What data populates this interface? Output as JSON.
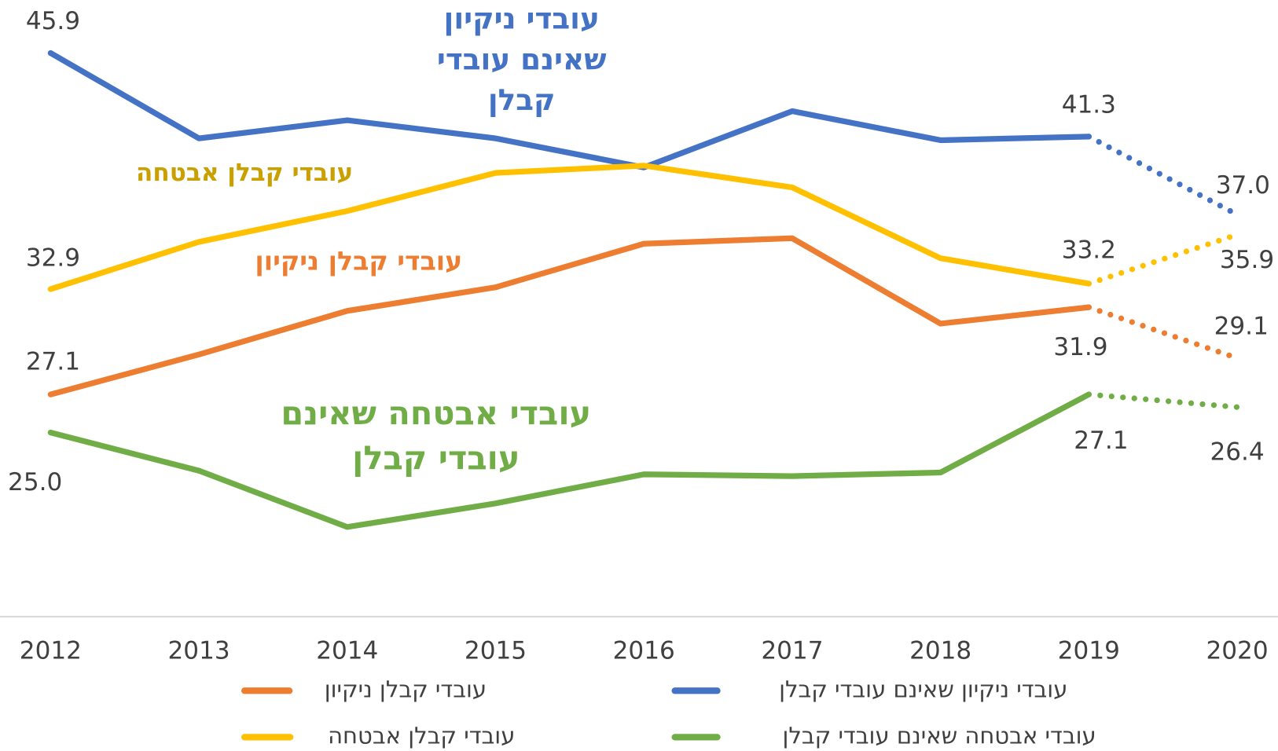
{
  "chart_data": {
    "type": "line",
    "categories": [
      "2012",
      "2013",
      "2014",
      "2015",
      "2016",
      "2017",
      "2018",
      "2019",
      "2020"
    ],
    "ylim": [
      15,
      49
    ],
    "series": [
      {
        "name": "עובדי ניקיון שאינם עובדי קבלן",
        "color": "#4472c4",
        "values": [
          45.9,
          41.2,
          42.2,
          41.2,
          39.6,
          42.7,
          41.1,
          41.3,
          37.0
        ],
        "value_labels": [
          "45.9",
          null,
          null,
          null,
          null,
          null,
          null,
          "41.3",
          "37.0"
        ]
      },
      {
        "name": "עובדי קבלן אבטחה",
        "color": "#ffc000",
        "values": [
          32.9,
          35.5,
          37.2,
          39.3,
          39.7,
          38.5,
          34.6,
          33.2,
          35.9
        ],
        "value_labels": [
          "32.9",
          null,
          null,
          null,
          null,
          null,
          null,
          "33.2",
          "35.9"
        ]
      },
      {
        "name": "עובדי קבלן ניקיון",
        "color": "#ed7d31",
        "values": [
          27.1,
          29.3,
          31.7,
          33.0,
          35.4,
          35.7,
          31.0,
          31.9,
          29.1
        ],
        "value_labels": [
          "27.1",
          null,
          null,
          null,
          null,
          null,
          null,
          "31.9",
          "29.1"
        ]
      },
      {
        "name": "עובדי אבטחה שאינם עובדי קבלן",
        "color": "#70ad47",
        "values": [
          25.0,
          22.9,
          19.8,
          21.1,
          22.7,
          22.6,
          22.8,
          27.1,
          26.4
        ],
        "value_labels": [
          "25.0",
          null,
          null,
          null,
          null,
          null,
          null,
          "27.1",
          "26.4"
        ]
      }
    ],
    "annotations": [
      {
        "lines": [
          "עובדי ניקיון",
          "שאינם עובדי",
          "קבלן"
        ]
      },
      {
        "lines": [
          "עובדי קבלן אבטחה"
        ]
      },
      {
        "lines": [
          "עובדי קבלן ניקיון"
        ]
      },
      {
        "lines": [
          "עובדי אבטחה שאינם",
          "עובדי קבלן"
        ]
      }
    ]
  }
}
